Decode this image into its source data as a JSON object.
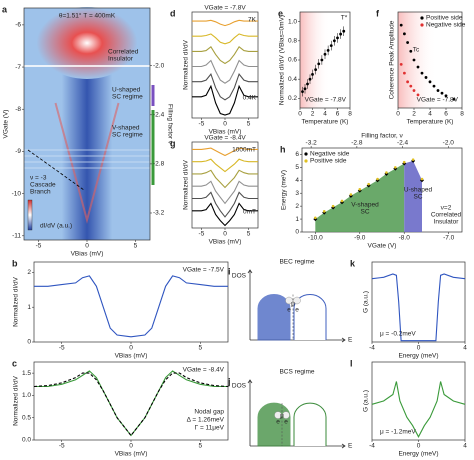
{
  "chart_data": [
    {
      "type": "heatmap",
      "label": "a",
      "xlabel": "VBias (mV)",
      "ylabel": "VGate (V)",
      "y2label": "Filling factor ν",
      "xlim": [
        -6.5,
        6.5
      ],
      "xticks": [
        -5,
        0,
        5
      ],
      "ylim": [
        -11.1,
        -5.6
      ],
      "yticks": [
        -6,
        -7,
        -8,
        -9,
        -10,
        -11
      ],
      "y2lim": [
        -3.42,
        -1.53
      ],
      "y2ticks": [
        {
          "value": -2,
          "label": "-2.0"
        },
        -2.4,
        -2.8,
        -3.2
      ],
      "notes": [
        "θ=1.51° T = 400mK",
        "Correlated",
        "Insulator",
        "U-shaped",
        "SC regime",
        "V-shaped",
        "SC regime",
        "ν = -3",
        "Cascade",
        "Branch",
        "dI/dV (a.u.)"
      ]
    },
    {
      "type": "line",
      "label": "b",
      "xlabel": "VBias (mV)",
      "ylabel": "Normalized dI/dV",
      "xlim": [
        -7,
        7
      ],
      "xticks": [
        -5,
        0,
        5
      ],
      "ylim": [
        0,
        2.3
      ],
      "yticks": [
        0,
        1,
        2
      ],
      "x": [
        -7,
        -6,
        -5,
        -4,
        -3.5,
        -3,
        -2.5,
        -2,
        -1.5,
        -1,
        0,
        1,
        1.5,
        2,
        2.5,
        3,
        3.5,
        4,
        5,
        6,
        7
      ],
      "series": [
        {
          "color": "#2f55c0",
          "values": [
            1.6,
            1.6,
            1.65,
            1.7,
            1.85,
            1.9,
            1.6,
            1.0,
            0.4,
            0.2,
            0.15,
            0.2,
            0.4,
            1.0,
            1.6,
            1.9,
            1.85,
            1.7,
            1.65,
            1.6,
            1.6
          ]
        }
      ],
      "notes": [
        "VGate = -7.5V"
      ]
    },
    {
      "type": "line",
      "label": "c",
      "xlabel": "VBias (mV)",
      "ylabel": "Normalized dI/dV",
      "xlim": [
        -7,
        7
      ],
      "xticks": [
        -5,
        0,
        5
      ],
      "ylim": [
        0,
        1.75
      ],
      "yticks": [
        {
          "value": 0,
          "label": "0.0"
        },
        0.5,
        {
          "value": 1,
          "label": "1.0"
        },
        1.5
      ],
      "x": [
        -7,
        -6,
        -5,
        -4,
        -3.5,
        -3,
        -2.5,
        -2,
        -1.5,
        -1,
        0,
        1,
        1.5,
        2,
        2.5,
        3,
        3.5,
        4,
        5,
        6,
        7
      ],
      "series": [
        {
          "color": "#3a9a3a",
          "values": [
            1.2,
            1.2,
            1.25,
            1.35,
            1.45,
            1.55,
            1.4,
            1.1,
            0.8,
            0.5,
            0.1,
            0.5,
            0.8,
            1.1,
            1.4,
            1.55,
            1.45,
            1.35,
            1.25,
            1.2,
            1.2
          ]
        },
        {
          "color": "#000000",
          "dash": true,
          "values": [
            1.2,
            1.22,
            1.28,
            1.4,
            1.5,
            1.5,
            1.35,
            1.1,
            0.8,
            0.5,
            0.1,
            0.5,
            0.8,
            1.1,
            1.35,
            1.5,
            1.5,
            1.4,
            1.28,
            1.22,
            1.2
          ]
        }
      ],
      "notes": [
        "VGate = -8.4V",
        "Nodal gap",
        "Δ = 1.26meV",
        "Γ = 11μeV"
      ]
    },
    {
      "type": "line",
      "label": "d",
      "xlabel": "VBias (mV)",
      "ylabel": "Normalized dI/dV",
      "xlim": [
        -7,
        7
      ],
      "xticks": [
        -5,
        0,
        5
      ],
      "ylim": [
        0,
        7
      ],
      "yticks": [],
      "x": [
        -7,
        -5,
        -4,
        -3,
        -2,
        -1,
        0,
        1,
        2,
        3,
        4,
        5,
        7
      ],
      "series": [
        {
          "color": "#e8a030",
          "values": [
            6.4,
            6.4,
            6.4,
            6.45,
            6.35,
            6.2,
            6.1,
            6.2,
            6.35,
            6.45,
            6.4,
            6.4,
            6.4
          ]
        },
        {
          "color": "#d8b828",
          "values": [
            5.4,
            5.4,
            5.45,
            5.55,
            5.3,
            5.0,
            4.9,
            5.0,
            5.3,
            5.55,
            5.45,
            5.4,
            5.4
          ]
        },
        {
          "color": "#a8a040",
          "values": [
            4.4,
            4.4,
            4.45,
            4.7,
            4.2,
            3.8,
            3.6,
            3.8,
            4.2,
            4.7,
            4.45,
            4.4,
            4.4
          ]
        },
        {
          "color": "#909090",
          "values": [
            3.4,
            3.4,
            3.5,
            3.8,
            3.1,
            2.5,
            2.3,
            2.5,
            3.1,
            3.8,
            3.5,
            3.4,
            3.4
          ]
        },
        {
          "color": "#505050",
          "values": [
            2.4,
            2.4,
            2.5,
            2.9,
            2.0,
            1.4,
            1.2,
            1.4,
            2.0,
            2.9,
            2.5,
            2.4,
            2.4
          ]
        },
        {
          "color": "#000000",
          "values": [
            1.4,
            1.4,
            1.5,
            2.1,
            1.0,
            0.3,
            0.2,
            0.3,
            1.0,
            2.1,
            1.5,
            1.4,
            1.4
          ]
        }
      ],
      "notes": [
        "VGate = -7.8V",
        "7K",
        "0.4K"
      ]
    },
    {
      "type": "scatter",
      "label": "e",
      "xlabel": "Temperature (K)",
      "ylabel": "Normalized dI/dV (VBias=0mV)",
      "xlim": [
        0,
        8
      ],
      "xticks": [
        0,
        2,
        4,
        6,
        8
      ],
      "ylim": [
        0.1,
        1.1
      ],
      "yticks": [
        0.2,
        0.4,
        0.6,
        0.8,
        {
          "value": 1,
          "label": "1.0"
        }
      ],
      "series": [
        {
          "color": "#000000",
          "x": [
            0.4,
            0.8,
            1.2,
            1.6,
            2.0,
            2.5,
            3,
            3.5,
            4,
            4.5,
            5,
            5.5,
            6,
            6.5,
            7
          ],
          "values": [
            0.27,
            0.3,
            0.35,
            0.4,
            0.45,
            0.5,
            0.56,
            0.6,
            0.66,
            0.7,
            0.75,
            0.8,
            0.83,
            0.87,
            0.9
          ],
          "errors": [
            0.05,
            0.05,
            0.05,
            0.05,
            0.05,
            0.05,
            0.05,
            0.05,
            0.05,
            0.05,
            0.05,
            0.05,
            0.05,
            0.05,
            0.05
          ]
        }
      ],
      "notes": [
        "T*",
        "VGate = -7.8V"
      ]
    },
    {
      "type": "scatter",
      "label": "f",
      "xlabel": "Temperature (K)",
      "ylabel": "Coherence Peak Amplitude",
      "xlim": [
        0,
        8
      ],
      "xticks": [
        0,
        2,
        4,
        6,
        8
      ],
      "ylim": [
        0,
        1.1
      ],
      "yticks": [],
      "legend": "upper right",
      "series": [
        {
          "name": "Positive side",
          "color": "#000000",
          "x": [
            0.4,
            0.8,
            1.2,
            1.6,
            2,
            2.5,
            3,
            3.5,
            4,
            4.5,
            5,
            5.5,
            6,
            7
          ],
          "values": [
            0.95,
            0.85,
            0.75,
            0.65,
            0.55,
            0.47,
            0.4,
            0.35,
            0.3,
            0.25,
            0.2,
            0.17,
            0.14,
            0.1
          ]
        },
        {
          "name": "Negative side",
          "color": "#e03030",
          "x": [
            0.4,
            0.8,
            1.2,
            1.6,
            2.0,
            2.5
          ],
          "values": [
            0.5,
            0.4,
            0.3,
            0.25,
            0.2,
            0.15
          ]
        }
      ],
      "notes": [
        "Tc",
        "VGate = -7.8V"
      ]
    },
    {
      "type": "line",
      "label": "g",
      "xlabel": "VBias (mV)",
      "ylabel": "Normalized dI/dV",
      "xlim": [
        -7,
        7
      ],
      "xticks": [
        -5,
        0,
        5
      ],
      "ylim": [
        0,
        7
      ],
      "yticks": [],
      "x": [
        -7,
        -5,
        -4,
        -3,
        -2,
        -1,
        0,
        1,
        2,
        3,
        4,
        5,
        7
      ],
      "series": [
        {
          "color": "#e8a030",
          "values": [
            6.4,
            6.4,
            6.45,
            6.5,
            6.3,
            6.1,
            5.9,
            6.1,
            6.3,
            6.5,
            6.45,
            6.4,
            6.4
          ]
        },
        {
          "color": "#d8b828",
          "values": [
            5.4,
            5.4,
            5.45,
            5.6,
            5.2,
            4.9,
            4.6,
            4.9,
            5.2,
            5.6,
            5.45,
            5.4,
            5.4
          ]
        },
        {
          "color": "#a8a040",
          "values": [
            4.4,
            4.4,
            4.5,
            4.7,
            4.1,
            3.7,
            3.3,
            3.7,
            4.1,
            4.7,
            4.5,
            4.4,
            4.4
          ]
        },
        {
          "color": "#909090",
          "values": [
            3.4,
            3.4,
            3.5,
            3.8,
            3.0,
            2.5,
            2.0,
            2.5,
            3.0,
            3.8,
            3.5,
            3.4,
            3.4
          ]
        },
        {
          "color": "#505050",
          "values": [
            2.4,
            2.4,
            2.5,
            2.9,
            2.0,
            1.4,
            0.9,
            1.4,
            2.0,
            2.9,
            2.5,
            2.4,
            2.4
          ]
        },
        {
          "color": "#000000",
          "values": [
            1.4,
            1.4,
            1.5,
            2.0,
            1.1,
            0.6,
            0.2,
            0.6,
            1.1,
            2.0,
            1.5,
            1.4,
            1.4
          ]
        }
      ],
      "notes": [
        "VGate = -8.4V",
        "1000mT",
        "0mT"
      ]
    },
    {
      "type": "area",
      "label": "h",
      "xlabel": "VGate (V)",
      "ylabel": "Energy (meV)",
      "x2label": "Filling factor, ν",
      "xlim": [
        -10.3,
        -6.7
      ],
      "xticks": [
        {
          "value": -10,
          "label": "-10.0"
        },
        {
          "value": -9,
          "label": "-9.0"
        },
        {
          "value": -8,
          "label": "-8.0"
        },
        {
          "value": -7,
          "label": "-7.0"
        }
      ],
      "x2lim": [
        -3.28,
        -1.88
      ],
      "x2ticks": [
        -3.2,
        -2.8,
        -2.4,
        {
          "value": -2,
          "label": "-2.0"
        }
      ],
      "ylim": [
        0,
        6.5
      ],
      "yticks": [
        0,
        1,
        2,
        3,
        4,
        5,
        6
      ],
      "legend": "upper left",
      "fill_colors": [
        "#5aa05a",
        "#6a6ac8"
      ],
      "series": [
        {
          "name": "Negative side",
          "color": "#000000",
          "marker": "diamond",
          "x": [
            -10,
            -9.8,
            -9.6,
            -9.4,
            -9.2,
            -9,
            -8.8,
            -8.6,
            -8.4,
            -8.2,
            -8,
            -7.8,
            -7.6
          ],
          "values": [
            1.0,
            1.5,
            1.9,
            2.3,
            2.8,
            3.2,
            3.6,
            4.0,
            4.5,
            4.9,
            5.3,
            5.5,
            4.0
          ]
        },
        {
          "name": "Positive side",
          "color": "#e0c020",
          "x": [
            -10,
            -9.8,
            -9.6,
            -9.4,
            -9.2,
            -9,
            -8.8,
            -8.6,
            -8.4,
            -8.2,
            -8,
            -7.8,
            -7.6
          ],
          "values": [
            1.1,
            1.6,
            2.0,
            2.4,
            2.9,
            3.3,
            3.7,
            4.1,
            4.6,
            5.0,
            5.4,
            5.6,
            4.1
          ]
        }
      ],
      "notes": [
        "V-shaped",
        "SC",
        "U-shaped",
        "SC",
        "ν=2",
        "Correlated",
        "Insulator"
      ]
    },
    {
      "type": "diagram",
      "label": "i",
      "color": "#3f5fbf",
      "notes": [
        "BEC regime",
        "DOS",
        "E",
        "μ",
        "e",
        "e"
      ]
    },
    {
      "type": "diagram",
      "label": "j",
      "color": "#3a8a3a",
      "notes": [
        "BCS regime",
        "DOS",
        "E",
        "μ",
        "e",
        "e"
      ]
    },
    {
      "type": "line",
      "label": "k",
      "xlabel": "Energy (meV)",
      "ylabel": "G (a.u.)",
      "xlim": [
        -4,
        4
      ],
      "xticks": [
        -4,
        0,
        4
      ],
      "ylim": [
        0,
        1.2
      ],
      "yticks": [],
      "x": [
        -4,
        -3,
        -2.2,
        -1.9,
        -1.7,
        -1.5,
        0,
        1.5,
        1.7,
        1.9,
        2.2,
        3,
        4
      ],
      "series": [
        {
          "color": "#2f55c0",
          "values": [
            0.95,
            0.97,
            1.02,
            1.0,
            0.6,
            0.02,
            0.02,
            0.02,
            0.6,
            1.0,
            1.02,
            0.97,
            0.95
          ]
        }
      ],
      "notes": [
        "μ = -0.2meV"
      ]
    },
    {
      "type": "line",
      "label": "l",
      "xlabel": "Energy (meV)",
      "ylabel": "G (a.u.)",
      "xlim": [
        -4,
        4
      ],
      "xticks": [
        -4,
        0,
        4
      ],
      "ylim": [
        0,
        1.2
      ],
      "yticks": [],
      "x": [
        -4,
        -3,
        -2.2,
        -1.9,
        -1.6,
        -1,
        -0.5,
        0,
        0.5,
        1,
        1.6,
        1.9,
        2.2,
        3,
        4
      ],
      "series": [
        {
          "color": "#3a9a3a",
          "values": [
            0.55,
            0.6,
            0.7,
            0.9,
            0.6,
            0.35,
            0.22,
            0.05,
            0.22,
            0.35,
            0.6,
            0.9,
            0.7,
            0.6,
            0.55
          ]
        }
      ],
      "notes": [
        "μ = -1.2meV"
      ]
    }
  ]
}
